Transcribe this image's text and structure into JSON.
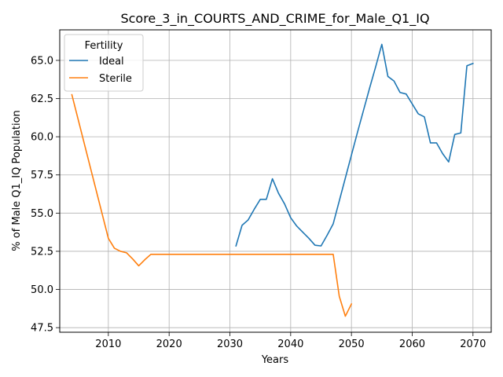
{
  "chart_data": {
    "type": "line",
    "title": "Score_3_in_COURTS_AND_CRIME_for_Male_Q1_IQ",
    "xlabel": "Years",
    "ylabel": "% of Male Q1_IQ Population",
    "xlim": [
      2002,
      2073
    ],
    "ylim": [
      47.2,
      67.0
    ],
    "xticks": [
      2010,
      2020,
      2030,
      2040,
      2050,
      2060,
      2070
    ],
    "xtick_labels": [
      "2010",
      "2020",
      "2030",
      "2040",
      "2050",
      "2060",
      "2070"
    ],
    "yticks": [
      47.5,
      50.0,
      52.5,
      55.0,
      57.5,
      60.0,
      62.5,
      65.0
    ],
    "ytick_labels": [
      "47.5",
      "50.0",
      "52.5",
      "55.0",
      "57.5",
      "60.0",
      "62.5",
      "65.0"
    ],
    "grid": true,
    "legend": {
      "title": "Fertility",
      "position": "top-left"
    },
    "series": [
      {
        "name": "Ideal",
        "color": "#1f77b4",
        "x": [
          2031,
          2032,
          2033,
          2034,
          2035,
          2036,
          2037,
          2038,
          2039,
          2040,
          2041,
          2042,
          2043,
          2044,
          2045,
          2046,
          2047,
          2048,
          2049,
          2050,
          2051,
          2052,
          2053,
          2054,
          2055,
          2056,
          2057,
          2058,
          2059,
          2060,
          2061,
          2062,
          2063,
          2064,
          2065,
          2066,
          2067,
          2068,
          2069,
          2070
        ],
        "y": [
          52.85,
          54.2,
          54.55,
          55.25,
          55.9,
          55.9,
          57.25,
          56.3,
          55.6,
          54.7,
          54.15,
          53.75,
          53.35,
          52.9,
          52.85,
          53.55,
          54.3,
          55.8,
          57.3,
          58.8,
          60.3,
          61.75,
          63.2,
          64.6,
          66.05,
          63.95,
          63.65,
          62.9,
          62.8,
          62.15,
          61.5,
          61.3,
          59.6,
          59.6,
          58.9,
          58.35,
          60.15,
          60.25,
          64.65,
          64.8
        ]
      },
      {
        "name": "Sterile",
        "color": "#ff7f0e",
        "x": [
          2004,
          2010,
          2011,
          2012,
          2013,
          2014,
          2015,
          2016,
          2017,
          2047,
          2048,
          2049,
          2050
        ],
        "y": [
          62.75,
          53.35,
          52.7,
          52.5,
          52.4,
          52.0,
          51.55,
          51.95,
          52.3,
          52.3,
          49.55,
          48.25,
          49.05
        ]
      }
    ]
  }
}
